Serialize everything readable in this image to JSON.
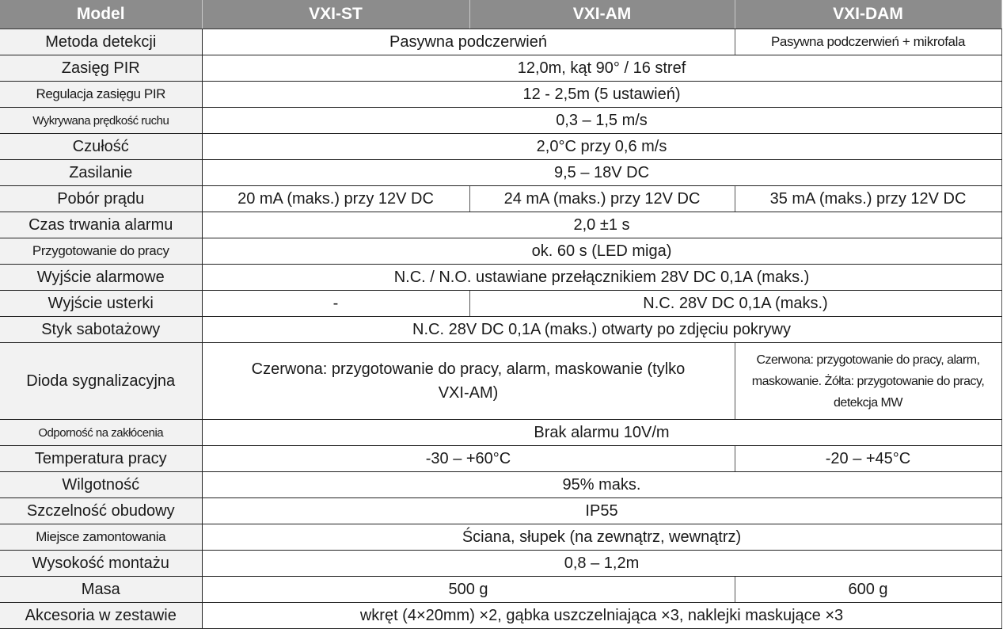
{
  "header": [
    "Model",
    "VXI-ST",
    "VXI-AM",
    "VXI-DAM"
  ],
  "rows": [
    {
      "label": "Metoda detekcji",
      "cells": [
        {
          "text": "Pasywna podczerwień",
          "span": 2
        },
        {
          "text": "Pasywna podczerwień + mikrofala",
          "span": 1
        }
      ]
    },
    {
      "label": "Zasięg PIR",
      "cells": [
        {
          "text": "12,0m, kąt 90° / 16 stref",
          "span": 3
        }
      ]
    },
    {
      "label": "Regulacja zasięgu PIR",
      "cells": [
        {
          "text": "12 - 2,5m (5 ustawień)",
          "span": 3
        }
      ]
    },
    {
      "label": "Wykrywana prędkość ruchu",
      "cells": [
        {
          "text": "0,3 – 1,5 m/s",
          "span": 3
        }
      ]
    },
    {
      "label": "Czułość",
      "cells": [
        {
          "text": "2,0°C przy 0,6 m/s",
          "span": 3
        }
      ]
    },
    {
      "label": "Zasilanie",
      "cells": [
        {
          "text": "9,5 – 18V DC",
          "span": 3
        }
      ]
    },
    {
      "label": "Pobór prądu",
      "cells": [
        {
          "text": "20 mA (maks.) przy 12V DC",
          "span": 1
        },
        {
          "text": "24 mA (maks.) przy 12V DC",
          "span": 1
        },
        {
          "text": "35 mA (maks.) przy 12V DC",
          "span": 1
        }
      ]
    },
    {
      "label": "Czas trwania alarmu",
      "cells": [
        {
          "text": "2,0 ±1 s",
          "span": 3
        }
      ]
    },
    {
      "label": "Przygotowanie do pracy",
      "cells": [
        {
          "text": "ok. 60 s (LED miga)",
          "span": 3
        }
      ]
    },
    {
      "label": "Wyjście alarmowe",
      "cells": [
        {
          "text": "N.C. / N.O. ustawiane przełącznikiem 28V DC 0,1A (maks.)",
          "span": 3
        }
      ]
    },
    {
      "label": "Wyjście usterki",
      "cells": [
        {
          "text": "-",
          "span": 1
        },
        {
          "text": "N.C. 28V DC 0,1A (maks.)",
          "span": 2
        }
      ]
    },
    {
      "label": "Styk sabotażowy",
      "cells": [
        {
          "text": "N.C. 28V DC 0,1A (maks.) otwarty po zdjęciu pokrywy",
          "span": 3
        }
      ]
    },
    {
      "label": "Dioda sygnalizacyjna",
      "cells": [
        {
          "text": "Czerwona: przygotowanie do pracy, alarm, maskowanie (tylko VXI-AM)",
          "span": 2
        },
        {
          "text": "Czerwona: przygotowanie do pracy, alarm, maskowanie. Żółta: przygotowanie do pracy, detekcja MW",
          "span": 1
        }
      ]
    },
    {
      "label": "Odporność na zakłócenia",
      "cells": [
        {
          "text": "Brak alarmu 10V/m",
          "span": 3
        }
      ]
    },
    {
      "label": "Temperatura pracy",
      "cells": [
        {
          "text": "-30 – +60°C",
          "span": 2
        },
        {
          "text": "-20 – +45°C",
          "span": 1
        }
      ]
    },
    {
      "label": "Wilgotność",
      "cells": [
        {
          "text": "95% maks.",
          "span": 3
        }
      ]
    },
    {
      "label": "Szczelność obudowy",
      "cells": [
        {
          "text": "IP55",
          "span": 3
        }
      ]
    },
    {
      "label": "Miejsce zamontowania",
      "cells": [
        {
          "text": "Ściana, słupek (na zewnątrz, wewnątrz)",
          "span": 3
        }
      ]
    },
    {
      "label": "Wysokość montażu",
      "cells": [
        {
          "text": "0,8 – 1,2m",
          "span": 3
        }
      ]
    },
    {
      "label": "Masa",
      "cells": [
        {
          "text": "500 g",
          "span": 2
        },
        {
          "text": "600 g",
          "span": 1
        }
      ]
    },
    {
      "label": "Akcesoria w zestawie",
      "cells": [
        {
          "text": "wkręt (4×20mm) ×2, gąbka uszczelniająca ×3, naklejki maskujące ×3",
          "span": 3
        }
      ]
    }
  ]
}
